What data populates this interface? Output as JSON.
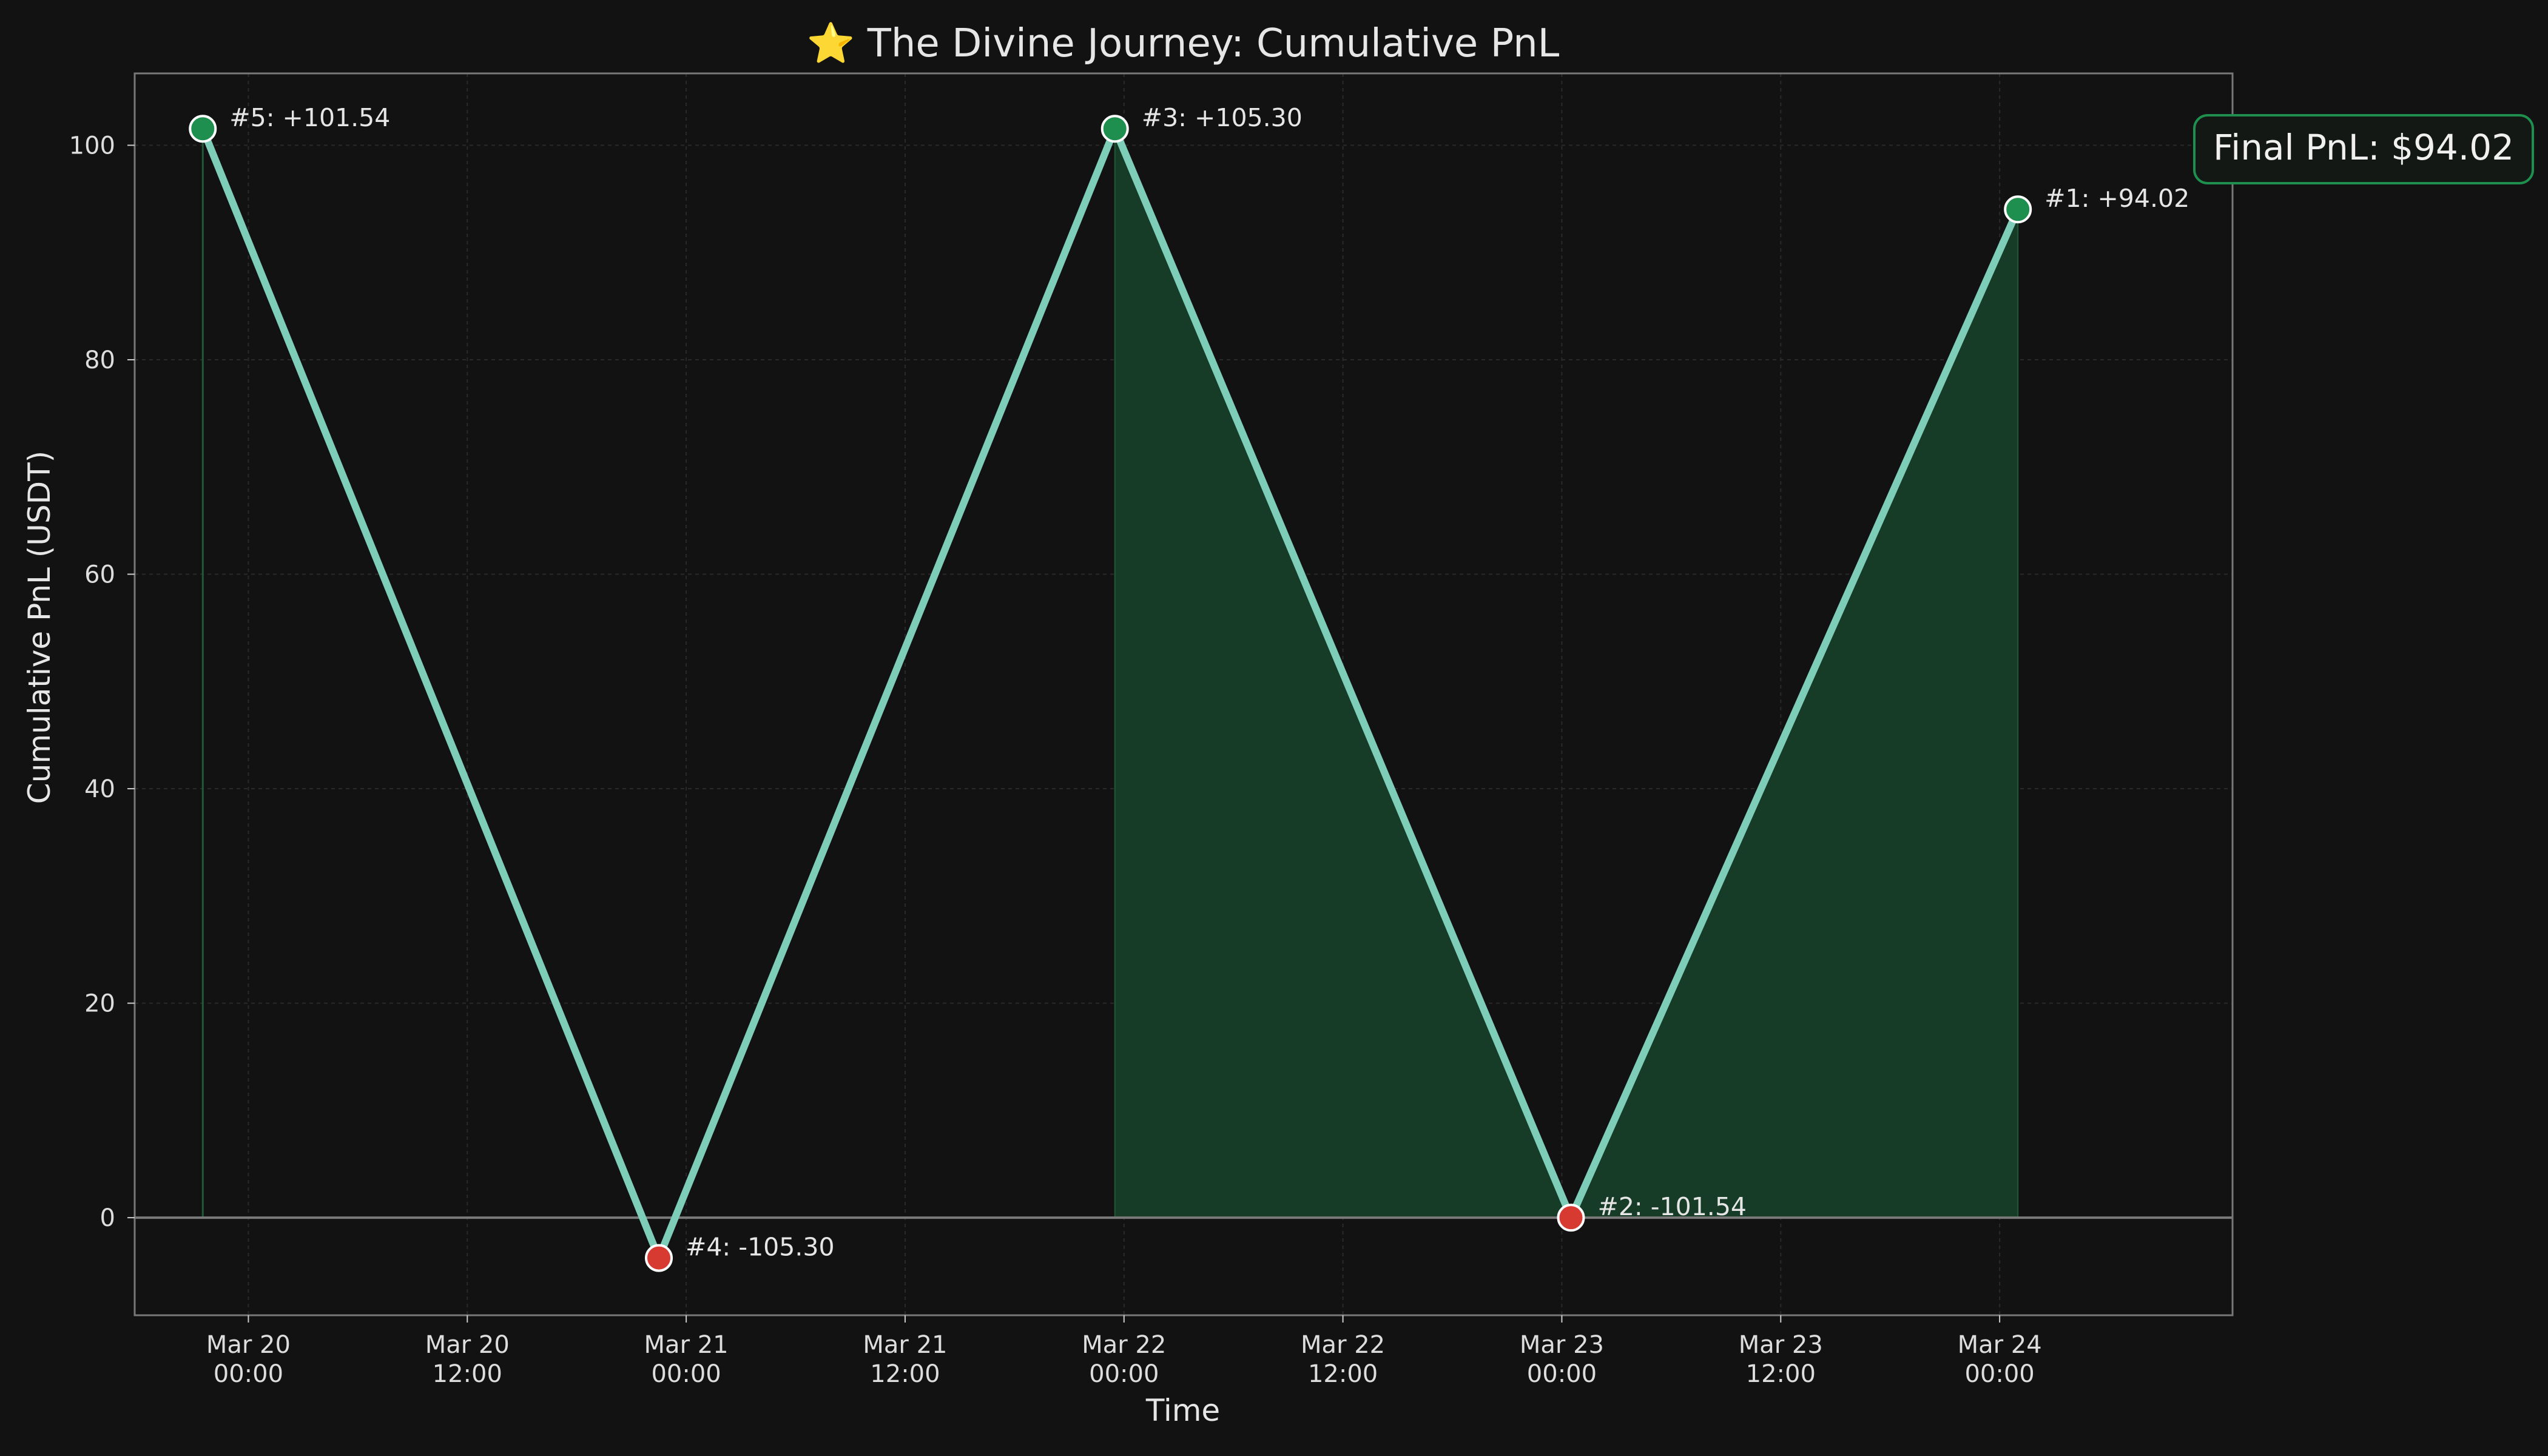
{
  "chart_data": {
    "type": "line",
    "title": "⭐ The Divine Journey: Cumulative PnL",
    "xlabel": "Time",
    "ylabel": "Cumulative PnL (USDT)",
    "ylim": [
      -9.1,
      106.7
    ],
    "xlim": [
      "2024-03-19 17:46",
      "2024-03-24 12:46"
    ],
    "y_ticks": [
      0,
      20,
      40,
      60,
      80,
      100
    ],
    "x_ticks": [
      {
        "at": "2024-03-20 00:00",
        "line1": "Mar 20",
        "line2": "00:00"
      },
      {
        "at": "2024-03-20 12:00",
        "line1": "Mar 20",
        "line2": "12:00"
      },
      {
        "at": "2024-03-21 00:00",
        "line1": "Mar 21",
        "line2": "00:00"
      },
      {
        "at": "2024-03-21 12:00",
        "line1": "Mar 21",
        "line2": "12:00"
      },
      {
        "at": "2024-03-22 00:00",
        "line1": "Mar 22",
        "line2": "00:00"
      },
      {
        "at": "2024-03-22 12:00",
        "line1": "Mar 22",
        "line2": "12:00"
      },
      {
        "at": "2024-03-23 00:00",
        "line1": "Mar 23",
        "line2": "00:00"
      },
      {
        "at": "2024-03-23 12:00",
        "line1": "Mar 23",
        "line2": "12:00"
      },
      {
        "at": "2024-03-24 00:00",
        "line1": "Mar 24",
        "line2": "00:00"
      }
    ],
    "points": [
      {
        "x": "2024-03-19 21:30",
        "y": 101.54,
        "label": "#5: +101.54",
        "kind": "win"
      },
      {
        "x": "2024-03-20 22:30",
        "y": -3.76,
        "label": "#4: -105.30",
        "kind": "loss"
      },
      {
        "x": "2024-03-21 23:30",
        "y": 101.54,
        "label": "#3: +105.30",
        "kind": "win"
      },
      {
        "x": "2024-03-23 00:30",
        "y": 0.0,
        "label": "#2: -101.54",
        "kind": "loss"
      },
      {
        "x": "2024-03-24 01:00",
        "y": 94.02,
        "label": "#1: +94.02",
        "kind": "win"
      }
    ],
    "grid": true,
    "zero_line": true,
    "annotation": "Final PnL: $94.02",
    "colors": {
      "background": "#121212",
      "line": "#7ecdb8",
      "win": "#1e8f4e",
      "loss": "#d63a30",
      "fill": "#163c28",
      "axes": "#777777",
      "grid": "#2a2a2a",
      "box_border": "#1e8f4e",
      "box_bg": "#141814"
    }
  }
}
